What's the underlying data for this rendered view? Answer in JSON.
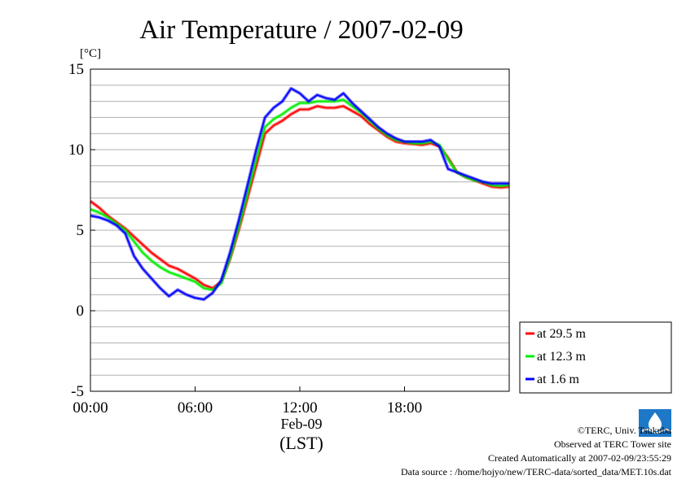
{
  "chart_data": {
    "type": "line",
    "title": "Air Temperature / 2007-02-09",
    "ylabel": "[°C]",
    "xlabel": "(LST)",
    "x_date_label": "Feb-09",
    "xlim": [
      0,
      24
    ],
    "ylim": [
      -5,
      15
    ],
    "y_ticks": [
      15,
      10,
      5,
      0,
      -5
    ],
    "x_ticks": [
      {
        "value": 0,
        "label": "00:00"
      },
      {
        "value": 6,
        "label": "06:00"
      },
      {
        "value": 12,
        "label": "12:00"
      },
      {
        "value": 18,
        "label": "18:00"
      }
    ],
    "grid": true,
    "legend_position": "bottom-right outside",
    "x": [
      0,
      0.5,
      1,
      1.5,
      2,
      2.5,
      3,
      3.5,
      4,
      4.5,
      5,
      5.5,
      6,
      6.5,
      7,
      7.5,
      8,
      8.5,
      9,
      9.5,
      10,
      10.5,
      11,
      11.5,
      12,
      12.5,
      13,
      13.5,
      14,
      14.5,
      15,
      15.5,
      16,
      16.5,
      17,
      17.5,
      18,
      18.5,
      19,
      19.5,
      20,
      20.5,
      21,
      21.5,
      22,
      22.5,
      23,
      23.5,
      24
    ],
    "series": [
      {
        "name": "at 29.5 m",
        "color": "#ff0000",
        "values": [
          6.8,
          6.4,
          5.9,
          5.5,
          5.1,
          4.6,
          4.1,
          3.6,
          3.2,
          2.8,
          2.6,
          2.3,
          2.0,
          1.6,
          1.4,
          1.8,
          3.2,
          5.0,
          7.0,
          9.0,
          11.0,
          11.5,
          11.8,
          12.2,
          12.5,
          12.5,
          12.7,
          12.6,
          12.6,
          12.7,
          12.4,
          12.1,
          11.6,
          11.2,
          10.8,
          10.5,
          10.4,
          10.35,
          10.3,
          10.4,
          10.2,
          9.5,
          8.6,
          8.3,
          8.1,
          7.9,
          7.7,
          7.65,
          7.7
        ]
      },
      {
        "name": "at 12.3 m",
        "color": "#00ee00",
        "values": [
          6.3,
          6.1,
          5.8,
          5.4,
          5.0,
          4.3,
          3.6,
          3.1,
          2.7,
          2.4,
          2.2,
          2.0,
          1.8,
          1.4,
          1.3,
          1.7,
          3.3,
          5.2,
          7.3,
          9.4,
          11.4,
          11.9,
          12.2,
          12.6,
          12.9,
          12.9,
          13.0,
          13.0,
          13.0,
          13.1,
          12.7,
          12.3,
          11.8,
          11.3,
          10.9,
          10.6,
          10.5,
          10.4,
          10.4,
          10.5,
          10.3,
          9.4,
          8.6,
          8.3,
          8.1,
          8.0,
          7.8,
          7.75,
          7.8
        ]
      },
      {
        "name": "at 1.6 m",
        "color": "#0000ff",
        "values": [
          5.9,
          5.8,
          5.6,
          5.3,
          4.8,
          3.4,
          2.6,
          2.0,
          1.4,
          0.9,
          1.3,
          1.0,
          0.8,
          0.7,
          1.1,
          1.9,
          3.6,
          5.6,
          7.8,
          10.0,
          12.0,
          12.6,
          13.0,
          13.8,
          13.5,
          13.0,
          13.4,
          13.2,
          13.1,
          13.5,
          12.9,
          12.4,
          11.9,
          11.4,
          11.0,
          10.7,
          10.5,
          10.5,
          10.5,
          10.6,
          10.2,
          8.8,
          8.6,
          8.4,
          8.2,
          8.0,
          7.9,
          7.9,
          7.9
        ]
      }
    ]
  },
  "footer": {
    "copyright": "©TERC, Univ. Tsukuba",
    "observed": "Observed at TERC Tower site",
    "created": "Created Automatically at 2007-02-09/23:55:29",
    "source": "Data source : /home/hojyo/new/TERC-data/sorted_data/MET.10s.dat"
  },
  "logo": {
    "text": "TERC",
    "color": "#1e78c8"
  }
}
